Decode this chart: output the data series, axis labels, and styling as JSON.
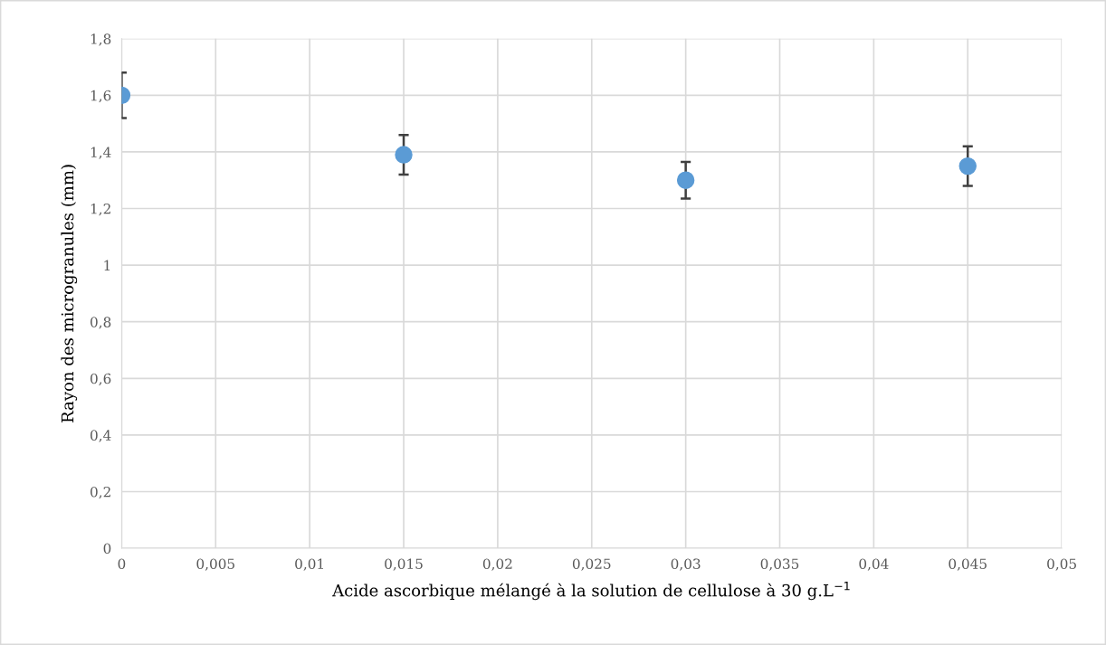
{
  "chart_data": {
    "type": "scatter",
    "xlabel": "Acide ascorbique mélangé à la solution de cellulose à 30 g.L$^{−1}$",
    "ylabel": "Rayon des microgranules (mm)",
    "x": [
      0,
      0.015,
      0.03,
      0.045
    ],
    "series": [
      {
        "color": "#5b9bd5",
        "values": [
          1.6,
          1.39,
          1.3,
          1.35
        ],
        "errors": [
          0.08,
          0.07,
          0.065,
          0.07
        ]
      }
    ],
    "xlim": [
      0,
      0.05
    ],
    "xticks": [
      0,
      {
        "value": 0.005,
        "label": "0,005"
      },
      {
        "value": 0.01,
        "label": "0,01"
      },
      {
        "value": 0.015,
        "label": "0,015"
      },
      {
        "value": 0.02,
        "label": "0,02"
      },
      {
        "value": 0.025,
        "label": "0,025"
      },
      {
        "value": 0.03,
        "label": "0,03"
      },
      {
        "value": 0.035,
        "label": "0,035"
      },
      {
        "value": 0.04,
        "label": "0,04"
      },
      {
        "value": 0.045,
        "label": "0,045"
      },
      {
        "value": 0.05,
        "label": "0,05"
      }
    ],
    "ylim": [
      0,
      1.8
    ],
    "yticks": [
      0,
      {
        "value": 0.2,
        "label": "0,2"
      },
      {
        "value": 0.4,
        "label": "0,4"
      },
      {
        "value": 0.6,
        "label": "0,6"
      },
      {
        "value": 0.8,
        "label": "0,8"
      },
      1,
      {
        "value": 1.2,
        "label": "1,2"
      },
      {
        "value": 1.4,
        "label": "1,4"
      },
      {
        "value": 1.6,
        "label": "1,6"
      },
      {
        "value": 1.8,
        "label": "1,8"
      }
    ],
    "grid": true,
    "marker": "circle"
  }
}
